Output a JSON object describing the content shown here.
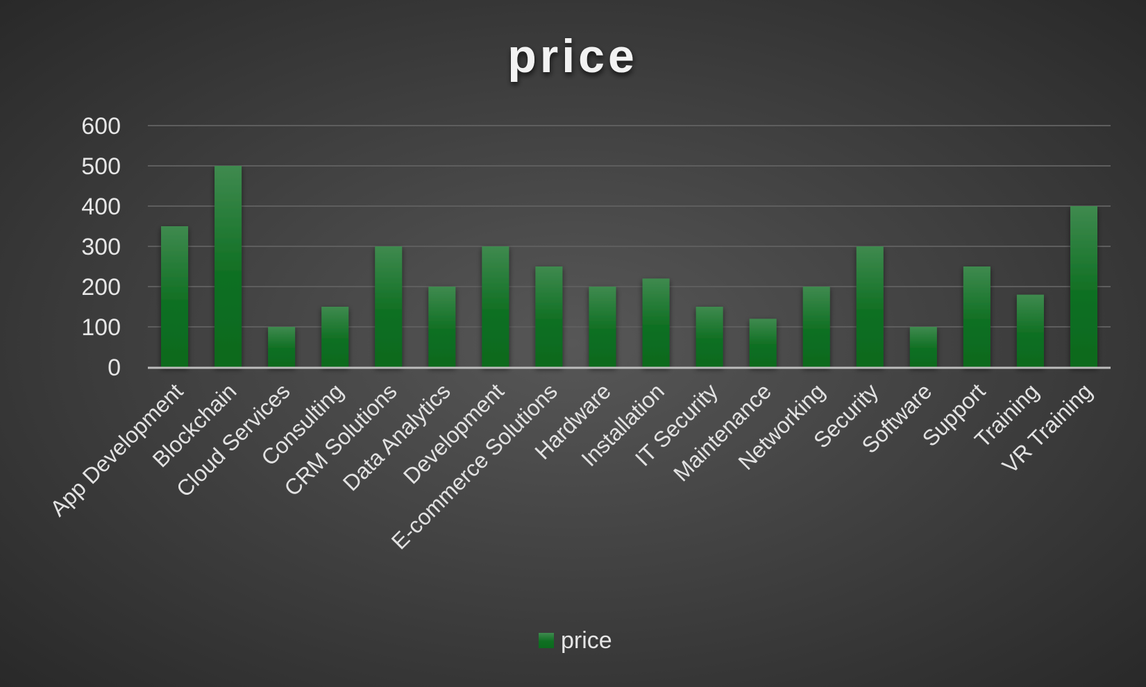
{
  "chart_data": {
    "type": "bar",
    "title": "price",
    "categories": [
      "App Development",
      "Blockchain",
      "Cloud Services",
      "Consulting",
      "CRM Solutions",
      "Data Analytics",
      "Development",
      "E-commerce Solutions",
      "Hardware",
      "Installation",
      "IT Security",
      "Maintenance",
      "Networking",
      "Security",
      "Software",
      "Support",
      "Training",
      "VR Training"
    ],
    "series": [
      {
        "name": "price",
        "values": [
          350,
          500,
          100,
          150,
          300,
          200,
          300,
          250,
          200,
          220,
          150,
          120,
          200,
          300,
          100,
          250,
          180,
          400
        ]
      }
    ],
    "yticks": [
      "0",
      "100",
      "200",
      "300",
      "400",
      "500",
      "600"
    ],
    "ylim": [
      0,
      600
    ],
    "grid": true,
    "legend": "bottom",
    "colors": {
      "bar_top": "#3f8a4f",
      "bar_bottom": "#0b6a1e",
      "background_center": "#575757",
      "background_edge": "#262626",
      "gridline": "#5e5e5e",
      "axis": "#bdbdbd"
    }
  }
}
